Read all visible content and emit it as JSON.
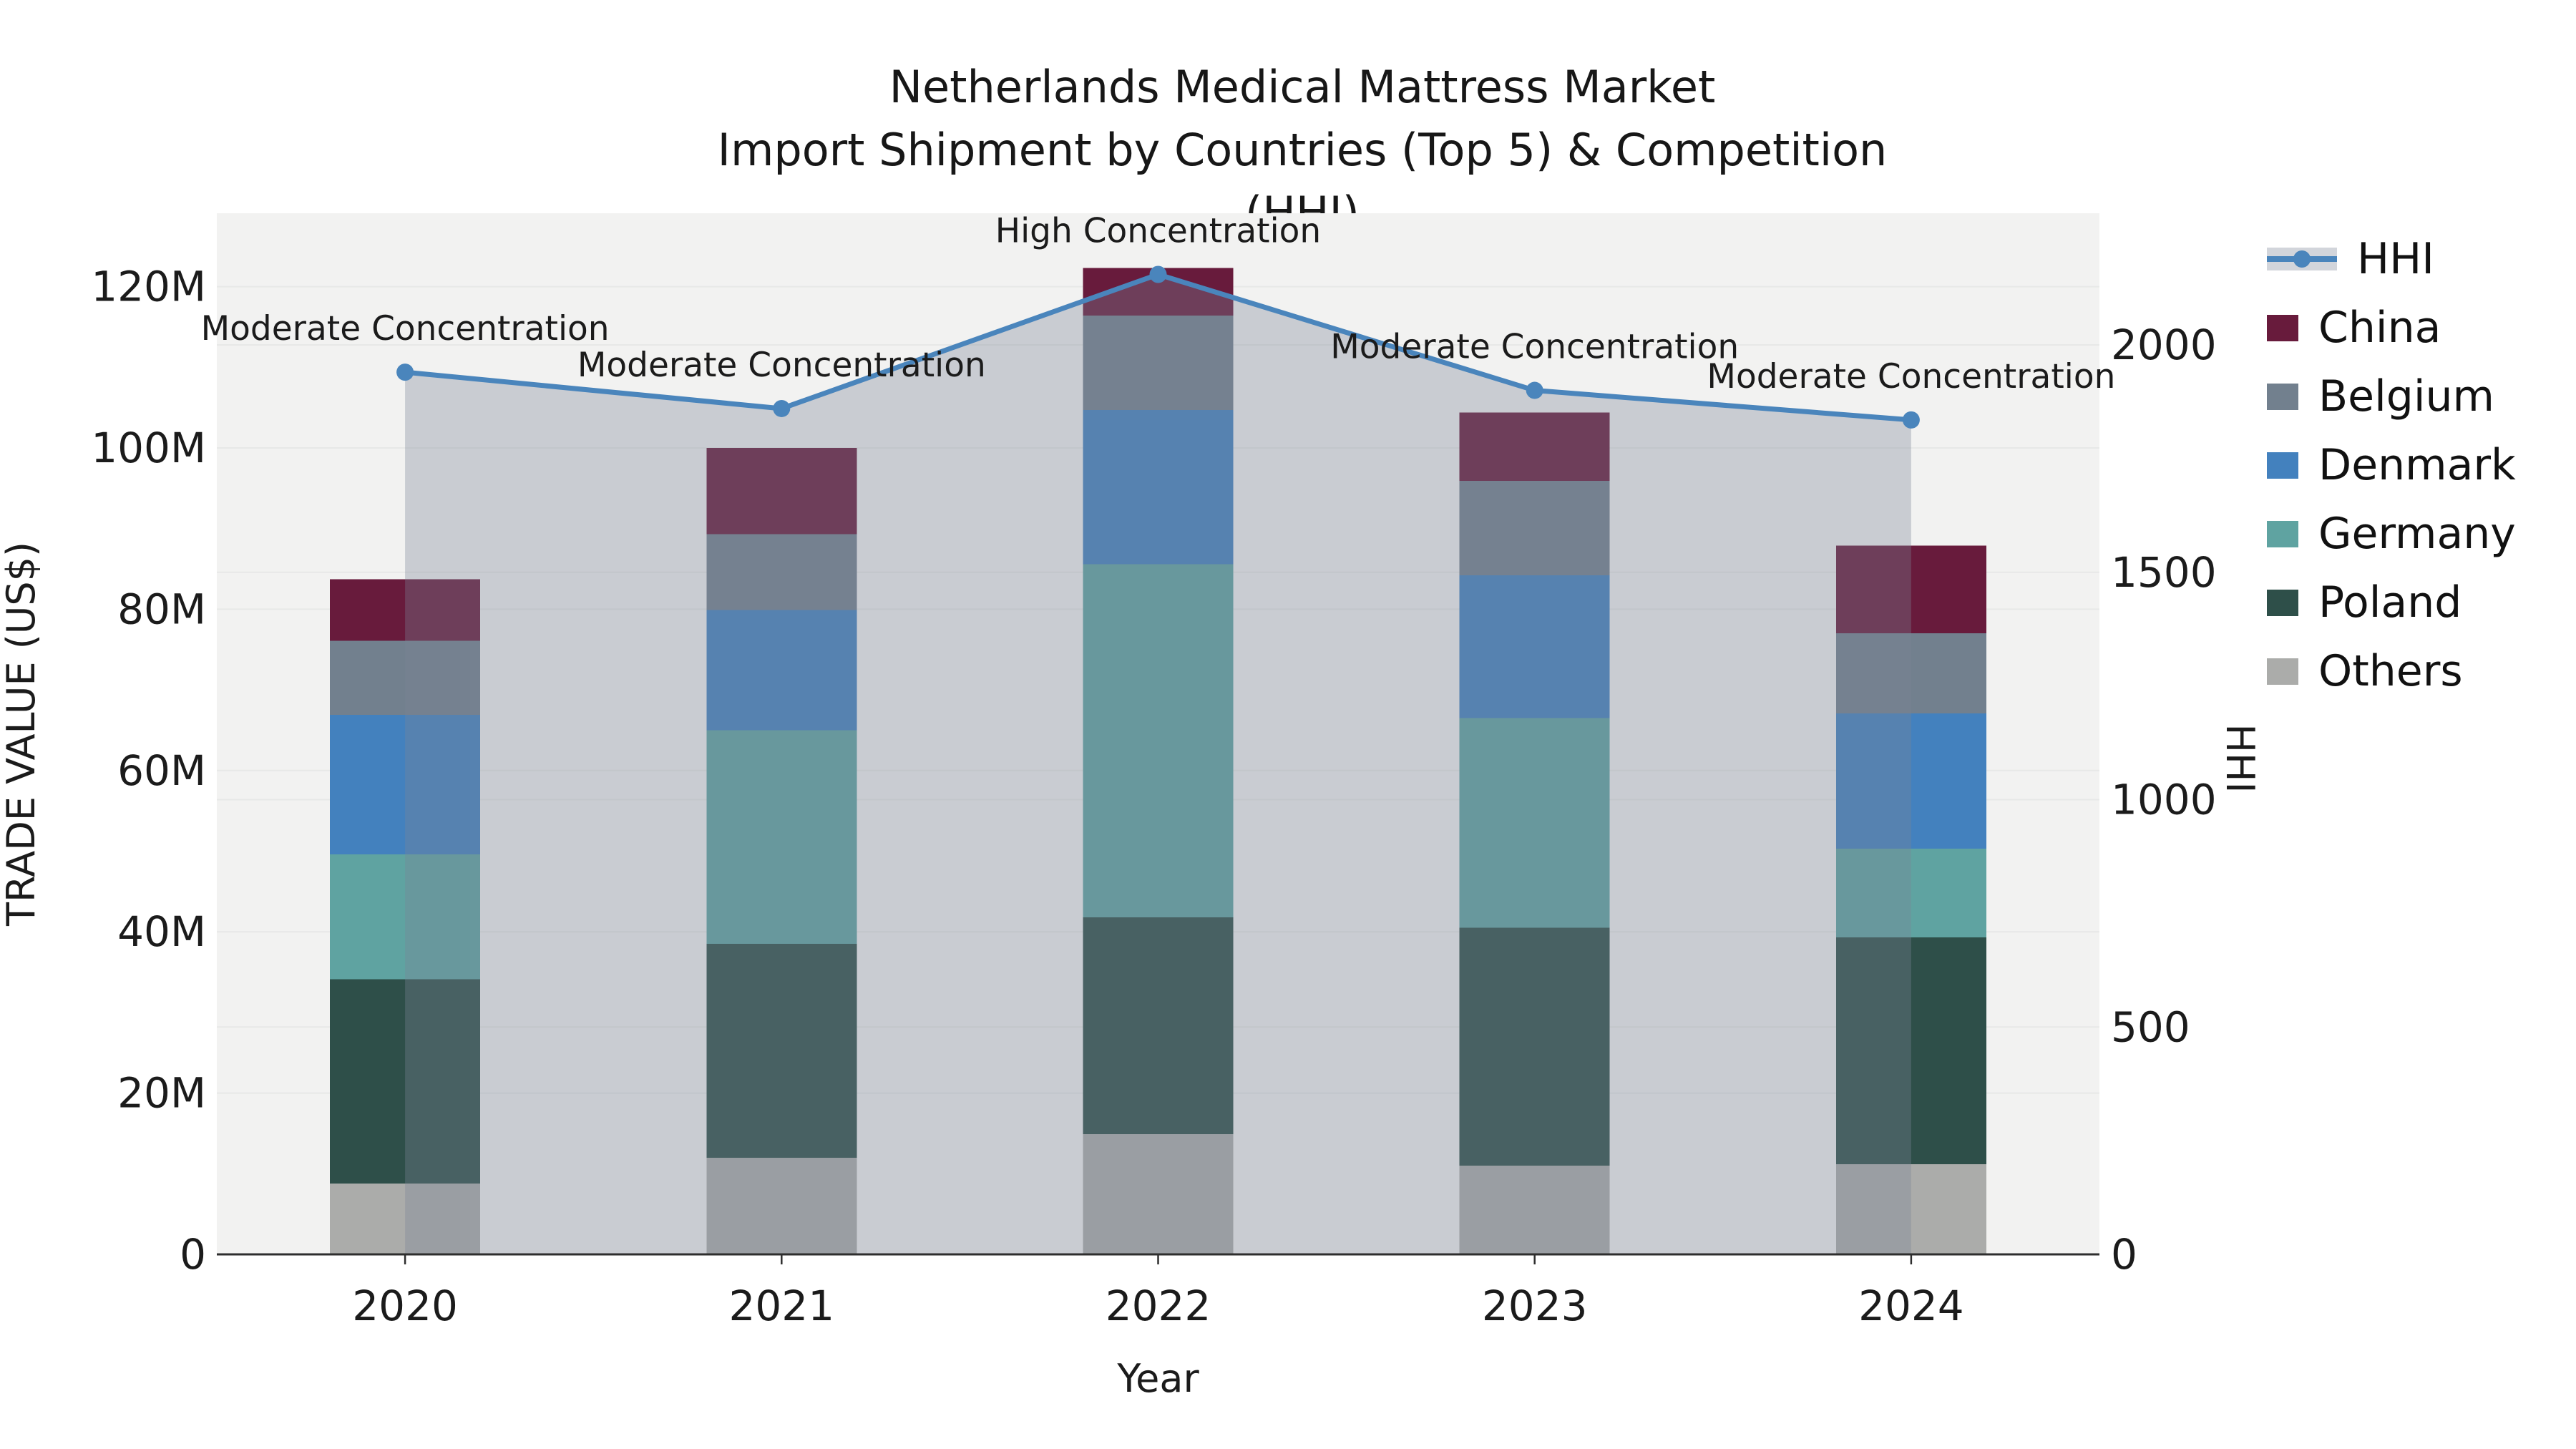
{
  "title": {
    "line1": "Netherlands Medical Mattress Market",
    "line2": "Import Shipment by Countries (Top 5) & Competition (HHI)"
  },
  "legend": {
    "items": [
      {
        "label": "HHI",
        "type": "line",
        "color": "#4A85BC",
        "area_color": "rgba(124,132,150,0.34)"
      },
      {
        "label": "China",
        "type": "patch",
        "color": "#681B3C"
      },
      {
        "label": "Belgium",
        "type": "patch",
        "color": "#72808E"
      },
      {
        "label": "Denmark",
        "type": "patch",
        "color": "#4381BE"
      },
      {
        "label": "Germany",
        "type": "patch",
        "color": "#5FA3A1"
      },
      {
        "label": "Poland",
        "type": "patch",
        "color": "#2E4F49"
      },
      {
        "label": "Others",
        "type": "patch",
        "color": "#ABACAA"
      }
    ]
  },
  "chart_data": {
    "type": "bar+line",
    "title": "Netherlands Medical Mattress Market",
    "subtitle": "Import Shipment by Countries (Top 5) & Competition (HHI)",
    "x": [
      "2020",
      "2021",
      "2022",
      "2023",
      "2024"
    ],
    "xlabel": "Year",
    "y_left": {
      "label": "TRADE VALUE (US$)",
      "tick_values": [
        0,
        20,
        40,
        60,
        80,
        100,
        120
      ],
      "tick_labels": [
        "0",
        "20M",
        "40M",
        "60M",
        "80M",
        "100M",
        "120M"
      ],
      "units": "millions US$"
    },
    "y_right": {
      "label": "HHI",
      "tick_values": [
        0,
        500,
        1000,
        1500,
        2000
      ],
      "tick_labels": [
        "0",
        "500",
        "1000",
        "1500",
        "2000"
      ]
    },
    "stack_order_bottom_to_top": [
      "Others",
      "Poland",
      "Germany",
      "Denmark",
      "Belgium",
      "China"
    ],
    "series": [
      {
        "name": "China",
        "color": "#681B3C",
        "values": [
          7.6,
          10.7,
          5.9,
          8.5,
          10.9
        ]
      },
      {
        "name": "Belgium",
        "color": "#72808E",
        "values": [
          9.2,
          9.4,
          11.7,
          11.7,
          9.9
        ]
      },
      {
        "name": "Denmark",
        "color": "#4381BE",
        "values": [
          17.3,
          14.9,
          19.1,
          17.7,
          16.8
        ]
      },
      {
        "name": "Germany",
        "color": "#5FA3A1",
        "values": [
          15.5,
          26.5,
          43.8,
          26.0,
          11.0
        ]
      },
      {
        "name": "Poland",
        "color": "#2E4F49",
        "values": [
          25.3,
          26.5,
          26.9,
          29.5,
          28.1
        ]
      },
      {
        "name": "Others",
        "color": "#ABACAA",
        "values": [
          8.8,
          12.0,
          14.9,
          11.0,
          11.2
        ]
      }
    ],
    "bar_totals": [
      83.7,
      100.0,
      122.3,
      104.4,
      87.9
    ],
    "hhi": {
      "name": "HHI",
      "color": "#4A85BC",
      "area_color": "rgba(124,132,150,0.34)",
      "values": [
        1940,
        1860,
        2155,
        1900,
        1835
      ]
    },
    "annotations": [
      "Moderate Concentration",
      "Moderate Concentration",
      "High Concentration",
      "Moderate Concentration",
      "Moderate Concentration"
    ],
    "grid": true,
    "legend_position": "right",
    "colors": {
      "plot_background": "#F2F2F1",
      "grid_line": "#E7E8E7",
      "axis_line": "#2E2E2E",
      "text": "#1B1B1B"
    }
  }
}
